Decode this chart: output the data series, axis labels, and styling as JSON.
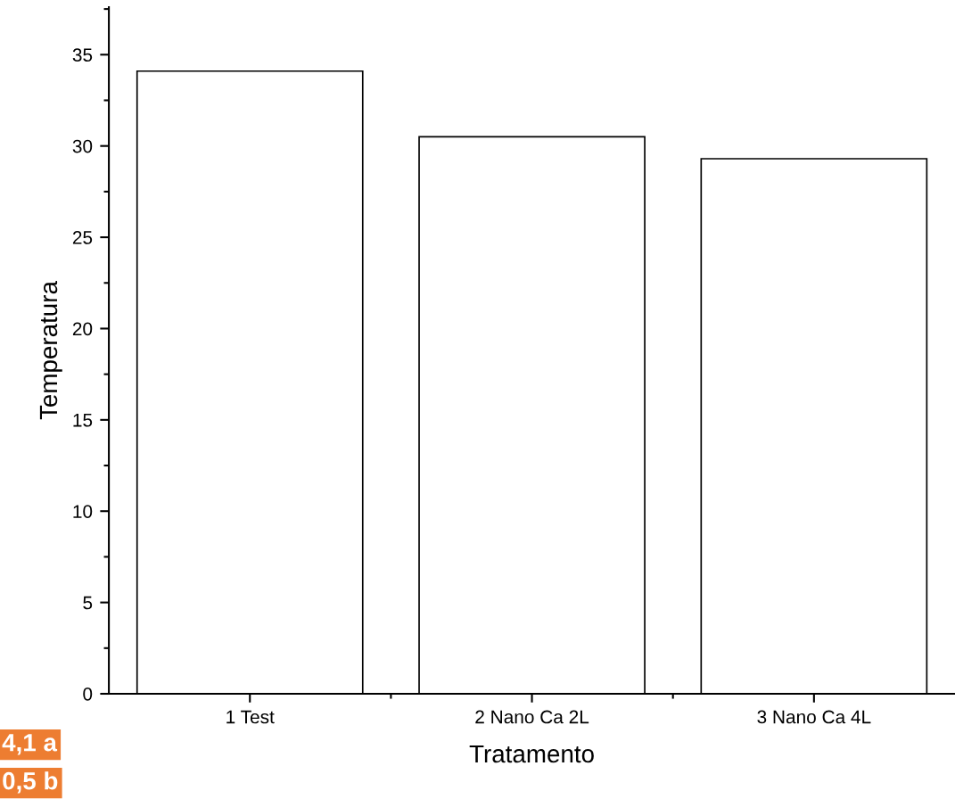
{
  "chart_data": {
    "type": "bar",
    "xlabel": "Tratamento",
    "ylabel": "Temperatura",
    "categories": [
      "1 Test",
      "2 Nano Ca 2L",
      "3 Nano Ca 4L"
    ],
    "values": [
      34.1,
      30.5,
      29.3
    ],
    "colors": [
      "#ffffff",
      "#ffffff",
      "#ffffff"
    ],
    "ylim": [
      0,
      37.6
    ],
    "yticks": [
      0,
      5,
      10,
      15,
      20,
      25,
      30,
      35
    ],
    "grid": false,
    "legend": false,
    "annotations": [
      "4,1 a",
      "0,5 b"
    ]
  }
}
